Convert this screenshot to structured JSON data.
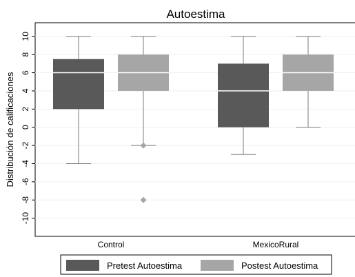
{
  "chart_data": {
    "type": "boxplot",
    "title": "Autoestima",
    "xlabel": "",
    "ylabel": "Distribución de calificaciones",
    "ylim": [
      -12,
      11.5
    ],
    "yticks": [
      10,
      8,
      6,
      4,
      2,
      0,
      -2,
      -4,
      -6,
      -8,
      -10
    ],
    "ytick_labels": [
      "10",
      "8",
      "6",
      "4",
      "2",
      "0",
      "-2",
      "-4",
      "-6",
      "-8",
      "-10"
    ],
    "categories": [
      "Control",
      "MexicoRural"
    ],
    "grid": true,
    "legend_position": "bottom",
    "series": [
      {
        "name": "Pretest Autoestima",
        "color": "#595959",
        "boxes": [
          {
            "category": "Control",
            "min": -4,
            "q1": 2,
            "median": 6,
            "q3": 7.5,
            "max": 10,
            "outliers": []
          },
          {
            "category": "MexicoRural",
            "min": -3,
            "q1": 0,
            "median": 4,
            "q3": 7,
            "max": 10,
            "outliers": []
          }
        ]
      },
      {
        "name": "Postest Autoestima",
        "color": "#a6a6a6",
        "boxes": [
          {
            "category": "Control",
            "min": -2,
            "q1": 4,
            "median": 6,
            "q3": 8,
            "max": 10,
            "outliers": [
              -2,
              -8
            ]
          },
          {
            "category": "MexicoRural",
            "min": 0,
            "q1": 4,
            "median": 6,
            "q3": 8,
            "max": 10,
            "outliers": []
          }
        ]
      }
    ]
  }
}
